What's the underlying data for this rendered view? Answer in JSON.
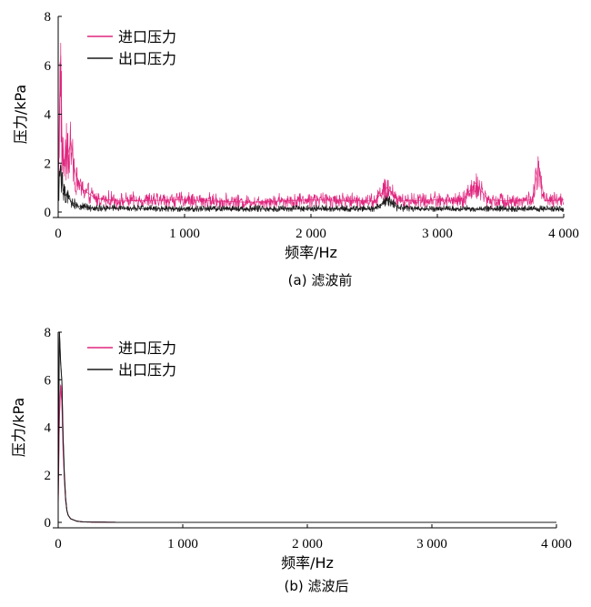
{
  "chart_data": [
    {
      "id": "a",
      "type": "line",
      "caption": "(a) 滤波前",
      "xlabel": "频率/Hz",
      "ylabel": "压力/kPa",
      "xlim": [
        0,
        4000
      ],
      "ylim": [
        0,
        8
      ],
      "x_ticks": [
        0,
        1000,
        2000,
        3000,
        4000
      ],
      "x_tick_labels": [
        "0",
        "1 000",
        "2 000",
        "3 000",
        "4 000"
      ],
      "y_ticks": [
        0,
        2,
        4,
        6,
        8
      ],
      "y_tick_labels": [
        "0",
        "2",
        "4",
        "6",
        "8"
      ],
      "grid": false,
      "legend_position": "top-left",
      "series": [
        {
          "name": "进口压力",
          "color": "#e0277f",
          "x": [
            0,
            10,
            20,
            30,
            40,
            50,
            60,
            80,
            100,
            120,
            150,
            200,
            300,
            500,
            1000,
            1500,
            2000,
            2500,
            2600,
            2700,
            3000,
            3200,
            3300,
            3400,
            3600,
            3750,
            3800,
            3850,
            4000
          ],
          "values": [
            1.0,
            4.2,
            6.4,
            2.8,
            2.3,
            2.0,
            2.6,
            2.4,
            2.9,
            2.0,
            1.3,
            0.9,
            0.55,
            0.45,
            0.5,
            0.4,
            0.5,
            0.45,
            1.0,
            0.45,
            0.5,
            0.45,
            1.2,
            0.5,
            0.45,
            0.5,
            1.9,
            0.45,
            0.5
          ]
        },
        {
          "name": "出口压力",
          "color": "#1a1a1a",
          "x": [
            0,
            10,
            20,
            30,
            40,
            60,
            80,
            100,
            150,
            200,
            300,
            500,
            1000,
            1500,
            2000,
            2500,
            2600,
            2700,
            3000,
            3500,
            4000
          ],
          "values": [
            0.5,
            1.6,
            1.9,
            1.2,
            0.9,
            0.7,
            0.6,
            0.45,
            0.25,
            0.2,
            0.15,
            0.15,
            0.12,
            0.12,
            0.12,
            0.12,
            0.5,
            0.15,
            0.12,
            0.12,
            0.12
          ]
        }
      ]
    },
    {
      "id": "b",
      "type": "line",
      "caption": "(b) 滤波后",
      "xlabel": "频率/Hz",
      "ylabel": "压力/kPa",
      "xlim": [
        0,
        4000
      ],
      "ylim": [
        0,
        8
      ],
      "x_ticks": [
        0,
        1000,
        2000,
        3000,
        4000
      ],
      "x_tick_labels": [
        "0",
        "1 000",
        "2 000",
        "3 000",
        "4 000"
      ],
      "y_ticks": [
        0,
        2,
        4,
        6,
        8
      ],
      "y_tick_labels": [
        "0",
        "2",
        "4",
        "6",
        "8"
      ],
      "grid": false,
      "legend_position": "top-left",
      "series": [
        {
          "name": "进口压力",
          "color": "#e0277f",
          "x": [
            0,
            10,
            20,
            30,
            40,
            50,
            60,
            70,
            80,
            100,
            150,
            200,
            300,
            500,
            1000,
            2000,
            3000,
            4000
          ],
          "values": [
            0.8,
            4.5,
            5.8,
            5.0,
            3.0,
            1.8,
            0.9,
            0.5,
            0.3,
            0.15,
            0.05,
            0.02,
            0.01,
            0.0,
            0.0,
            0.0,
            0.0,
            0.0
          ]
        },
        {
          "name": "出口压力",
          "color": "#1a1a1a",
          "x": [
            0,
            10,
            20,
            30,
            40,
            50,
            60,
            70,
            80,
            100,
            150,
            200,
            300,
            500,
            1000,
            2000,
            3000,
            4000
          ],
          "values": [
            1.0,
            8.0,
            6.7,
            5.9,
            3.5,
            2.0,
            1.0,
            0.5,
            0.3,
            0.15,
            0.05,
            0.02,
            0.01,
            0.0,
            0.0,
            0.0,
            0.0,
            0.0
          ]
        }
      ]
    }
  ]
}
